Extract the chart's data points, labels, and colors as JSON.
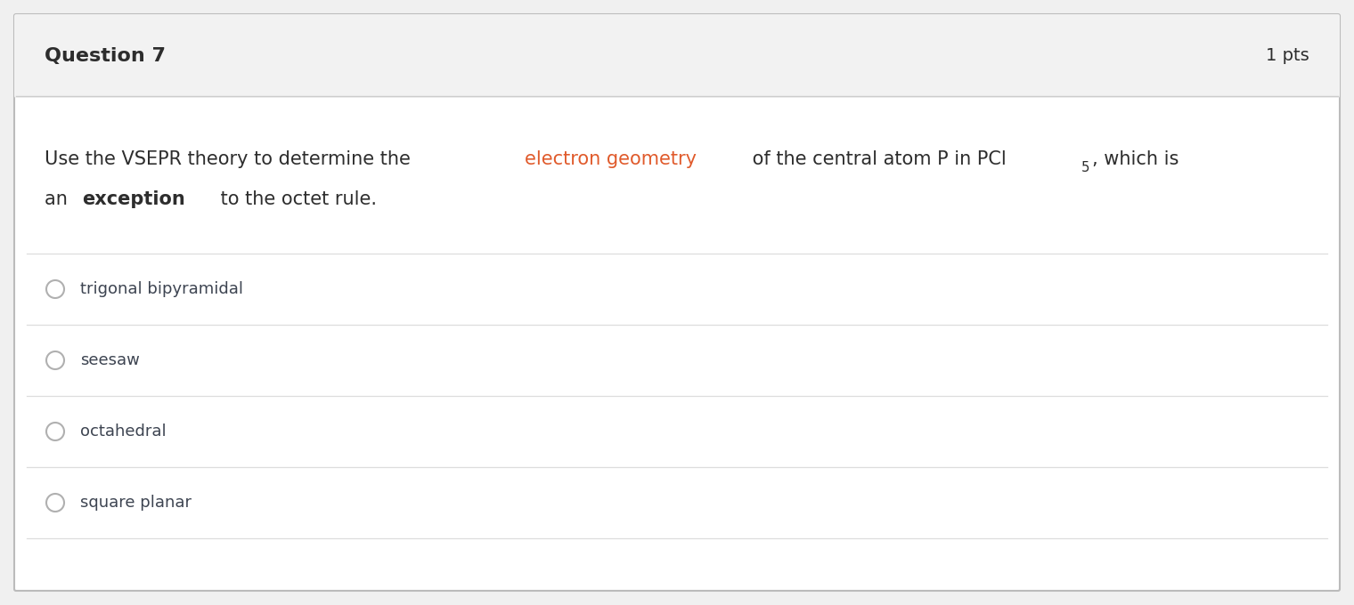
{
  "header_text": "Question 7",
  "pts_text": "1 pts",
  "header_bg": "#f2f2f2",
  "header_text_color": "#2d2d2d",
  "body_bg": "#ffffff",
  "border_color": "#cccccc",
  "options": [
    "trigonal bipyramidal",
    "seesaw",
    "octahedral",
    "square planar"
  ],
  "option_text_color": "#3d4451",
  "option_font_size": 13,
  "divider_color": "#dddddd",
  "circle_edge_color": "#b0b0b0",
  "outer_border_color": "#bbbbbb",
  "font_size_question": 15,
  "font_size_header": 16,
  "font_size_pts": 14,
  "red_color": "#e05a2b",
  "dark_color": "#2d2d2d"
}
